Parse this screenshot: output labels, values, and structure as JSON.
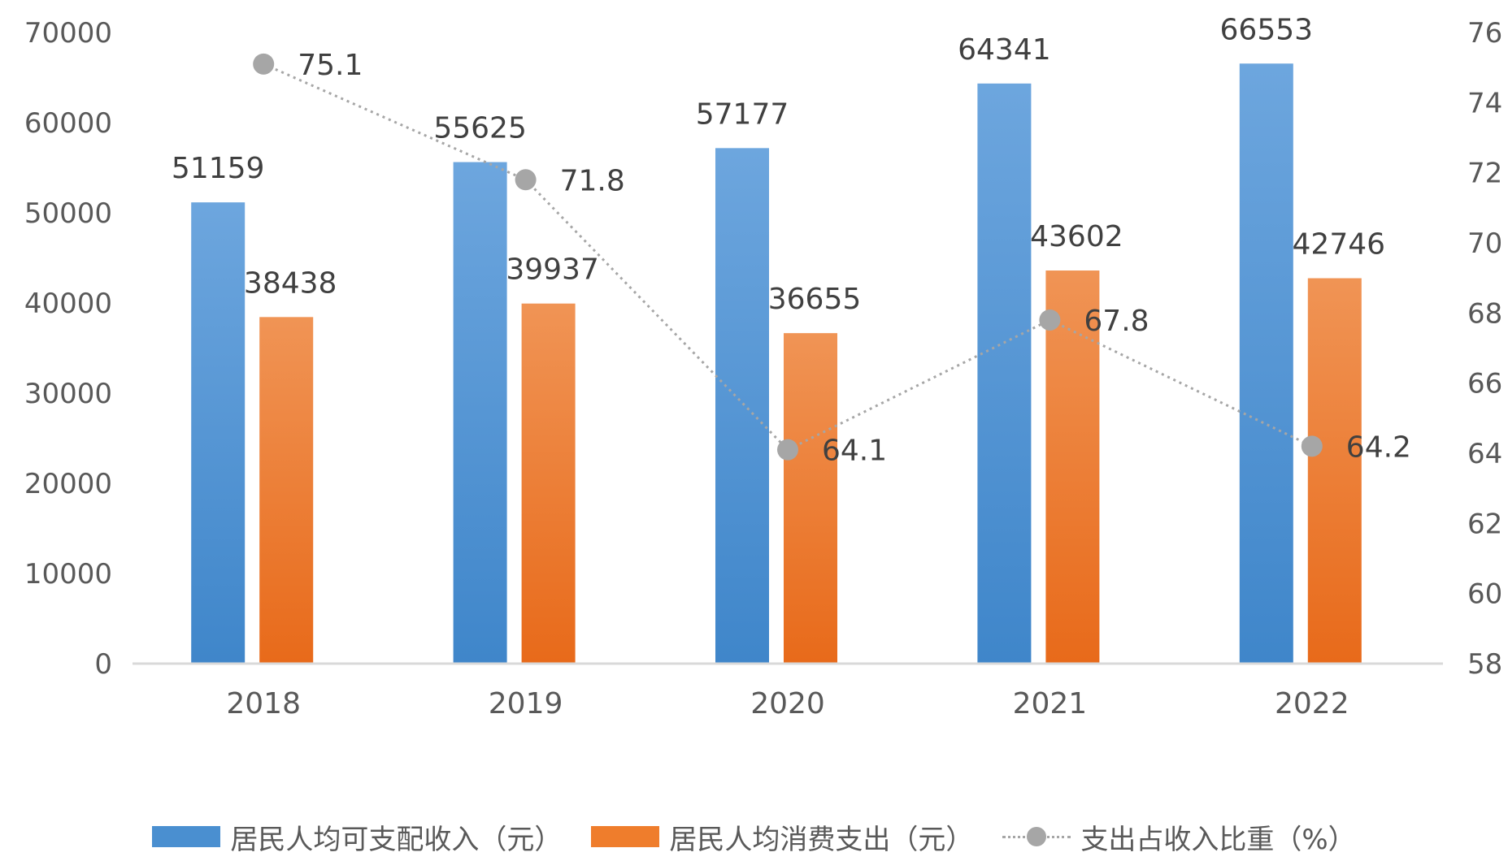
{
  "chart_data": {
    "type": "bar",
    "categories": [
      "2018",
      "2019",
      "2020",
      "2021",
      "2022"
    ],
    "series": [
      {
        "name": "居民人均可支配收入（元）",
        "type": "bar",
        "axis": "left",
        "color": "#4a8fd0",
        "values": [
          51159,
          55625,
          57177,
          64341,
          66553
        ]
      },
      {
        "name": "居民人均消费支出（元）",
        "type": "bar",
        "axis": "left",
        "color": "#ef7d2c",
        "values": [
          38438,
          39937,
          36655,
          43602,
          42746
        ]
      },
      {
        "name": "支出占收入比重（%）",
        "type": "line",
        "axis": "right",
        "color": "#a6a6a6",
        "values": [
          75.1,
          71.8,
          64.1,
          67.8,
          64.2
        ]
      }
    ],
    "left_axis": {
      "min": 0,
      "max": 70000,
      "step": 10000,
      "ticks": [
        "0",
        "10000",
        "20000",
        "30000",
        "40000",
        "50000",
        "60000",
        "70000"
      ]
    },
    "right_axis": {
      "min": 58,
      "max": 76,
      "step": 2,
      "ticks": [
        "58",
        "60",
        "62",
        "64",
        "66",
        "68",
        "70",
        "72",
        "74",
        "76"
      ]
    },
    "grid": false,
    "legend_position": "bottom"
  },
  "legend": {
    "income": "居民人均可支配收入（元）",
    "expense": "居民人均消费支出（元）",
    "ratio": "支出占收入比重（%）"
  }
}
